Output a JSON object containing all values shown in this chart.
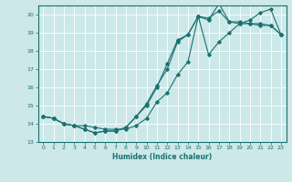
{
  "xlabel": "Humidex (Indice chaleur)",
  "ylabel": "",
  "xlim": [
    -0.5,
    23.5
  ],
  "ylim": [
    13,
    20.5
  ],
  "yticks": [
    13,
    14,
    15,
    16,
    17,
    18,
    19,
    20
  ],
  "xticks": [
    0,
    1,
    2,
    3,
    4,
    5,
    6,
    7,
    8,
    9,
    10,
    11,
    12,
    13,
    14,
    15,
    16,
    17,
    18,
    19,
    20,
    21,
    22,
    23
  ],
  "bg_color": "#cce8e8",
  "line_color": "#1a7070",
  "grid_color": "#ffffff",
  "line1_x": [
    0,
    1,
    2,
    3,
    4,
    5,
    6,
    7,
    8,
    9,
    10,
    11,
    12,
    13,
    14,
    15,
    16,
    17,
    18,
    19,
    20,
    21,
    22,
    23
  ],
  "line1_y": [
    14.4,
    14.3,
    14.0,
    13.9,
    13.7,
    13.5,
    13.6,
    13.6,
    13.8,
    14.4,
    15.1,
    16.1,
    17.0,
    18.5,
    18.9,
    19.9,
    19.8,
    20.2,
    19.6,
    19.5,
    19.5,
    19.5,
    19.4,
    18.9
  ],
  "line2_x": [
    0,
    1,
    2,
    3,
    4,
    5,
    6,
    7,
    8,
    9,
    10,
    11,
    12,
    13,
    14,
    15,
    16,
    17,
    18,
    19,
    20,
    21,
    22,
    23
  ],
  "line2_y": [
    14.4,
    14.3,
    14.0,
    13.9,
    13.9,
    13.8,
    13.7,
    13.7,
    13.7,
    13.9,
    14.3,
    15.2,
    15.7,
    16.7,
    17.4,
    19.9,
    19.7,
    20.6,
    19.6,
    19.6,
    19.5,
    19.4,
    19.4,
    18.9
  ],
  "line3_x": [
    0,
    1,
    2,
    3,
    4,
    5,
    6,
    7,
    8,
    9,
    10,
    11,
    12,
    13,
    14,
    15,
    16,
    17,
    18,
    19,
    20,
    21,
    22,
    23
  ],
  "line3_y": [
    14.4,
    14.3,
    14.0,
    13.9,
    13.7,
    13.5,
    13.6,
    13.6,
    13.8,
    14.4,
    15.0,
    16.0,
    17.3,
    18.6,
    18.9,
    19.9,
    17.8,
    18.5,
    19.0,
    19.5,
    19.7,
    20.1,
    20.3,
    18.9
  ]
}
